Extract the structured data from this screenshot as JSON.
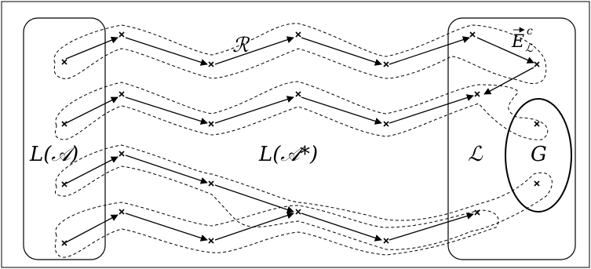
{
  "labels": {
    "left_region": "L(𝒜)",
    "middle_region": "L(𝒜*)",
    "right_region": "ℒ",
    "relation": "ℛ",
    "edge_set": "E",
    "edge_set_sup": "c",
    "edge_set_sub": "ℒ",
    "goal": "G"
  }
}
